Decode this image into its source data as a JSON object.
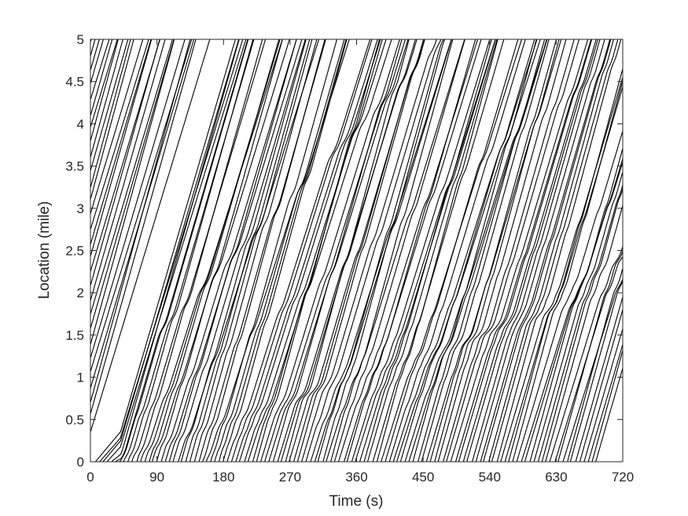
{
  "chart_data": {
    "type": "line",
    "title": "",
    "xlabel": "Time (s)",
    "ylabel": "Location (mile)",
    "xlim": [
      0,
      720
    ],
    "ylim": [
      0,
      5
    ],
    "xticks": [
      0,
      90,
      180,
      270,
      360,
      450,
      540,
      630,
      720
    ],
    "yticks": [
      0,
      0.5,
      1,
      1.5,
      2,
      2.5,
      3,
      3.5,
      4,
      4.5,
      5
    ],
    "xtick_labels": [
      "0",
      "90",
      "180",
      "270",
      "360",
      "450",
      "540",
      "630",
      "720"
    ],
    "ytick_labels": [
      "0",
      "0.5",
      "1",
      "1.5",
      "2",
      "2.5",
      "3",
      "3.5",
      "4",
      "4.5",
      "5"
    ],
    "grid": false,
    "legend": "none",
    "line_color": "#000000",
    "trajectory_count": 150,
    "description_of_series": "vehicle trajectories (location vs time)"
  }
}
